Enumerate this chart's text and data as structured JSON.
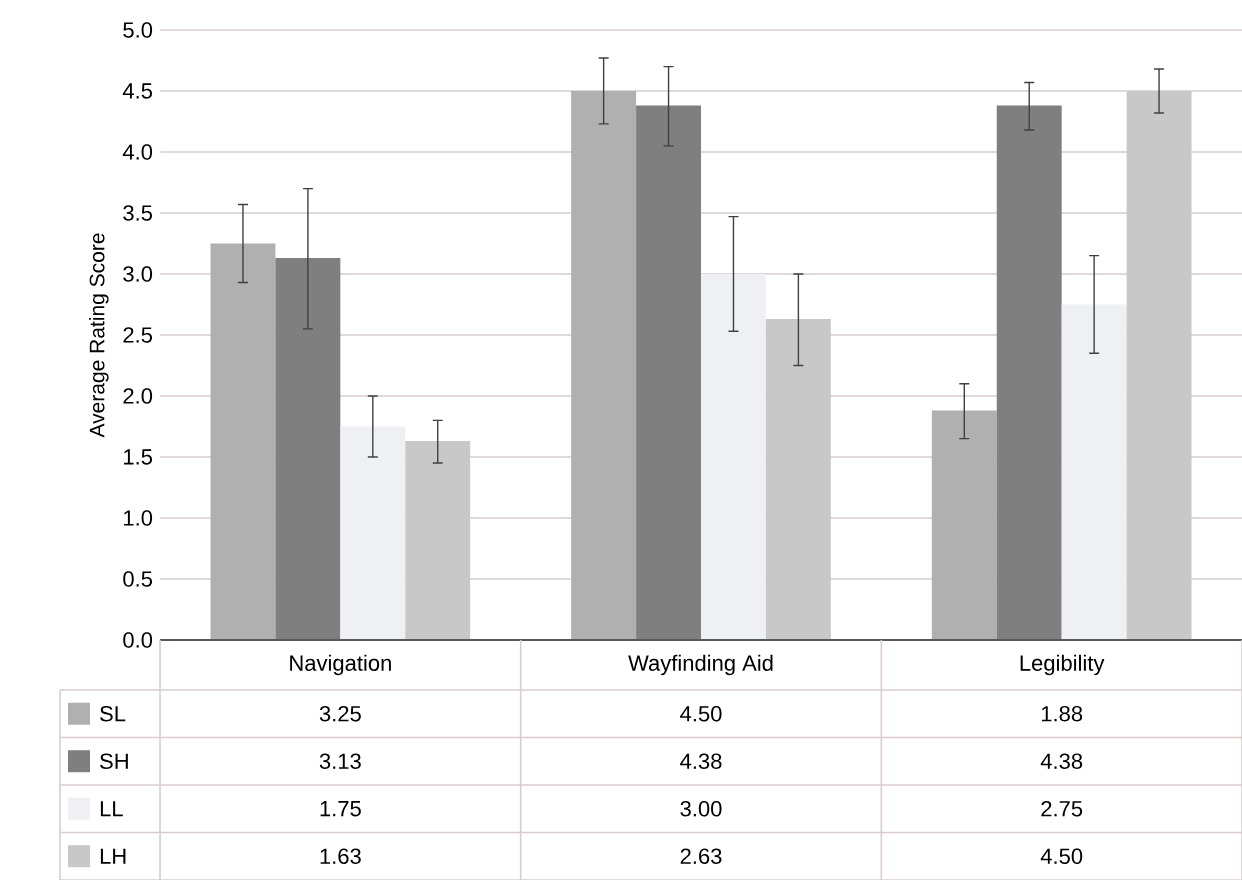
{
  "chart_data": {
    "type": "bar",
    "ylabel": "Average Rating Score",
    "categories": [
      "Navigation",
      "Wayfinding Aid",
      "Legibility"
    ],
    "series": [
      {
        "name": "SL",
        "color": "#b0b0b0",
        "values": [
          3.25,
          4.5,
          1.88
        ],
        "value_labels": [
          "3.25",
          "4.50",
          "1.88"
        ],
        "errors": [
          [
            2.93,
            3.57
          ],
          [
            4.23,
            4.77
          ],
          [
            1.65,
            2.1
          ]
        ]
      },
      {
        "name": "SH",
        "color": "#7f7f7f",
        "values": [
          3.13,
          4.38,
          4.38
        ],
        "value_labels": [
          "3.13",
          "4.38",
          "4.38"
        ],
        "errors": [
          [
            2.55,
            3.7
          ],
          [
            4.05,
            4.7
          ],
          [
            4.18,
            4.57
          ]
        ]
      },
      {
        "name": "LL",
        "color": "#eef0f4",
        "values": [
          1.75,
          3.0,
          2.75
        ],
        "value_labels": [
          "1.75",
          "3.00",
          "2.75"
        ],
        "errors": [
          [
            1.5,
            2.0
          ],
          [
            2.53,
            3.47
          ],
          [
            2.35,
            3.15
          ]
        ]
      },
      {
        "name": "LH",
        "color": "#c8c8c8",
        "values": [
          1.63,
          2.63,
          4.5
        ],
        "value_labels": [
          "1.63",
          "2.63",
          "4.50"
        ],
        "errors": [
          [
            1.45,
            1.8
          ],
          [
            2.25,
            3.0
          ],
          [
            4.32,
            4.68
          ]
        ]
      }
    ],
    "ylim": [
      0,
      5
    ],
    "yticks": [
      {
        "value": 0,
        "label": "0.0"
      },
      0.5,
      {
        "value": 1,
        "label": "1.0"
      },
      1.5,
      {
        "value": 2,
        "label": "2.0"
      },
      2.5,
      {
        "value": 3,
        "label": "3.0"
      },
      3.5,
      {
        "value": 4,
        "label": "4.0"
      },
      4.5,
      {
        "value": 5,
        "label": "5.0"
      }
    ],
    "grid": "y",
    "legend": "bottom"
  }
}
